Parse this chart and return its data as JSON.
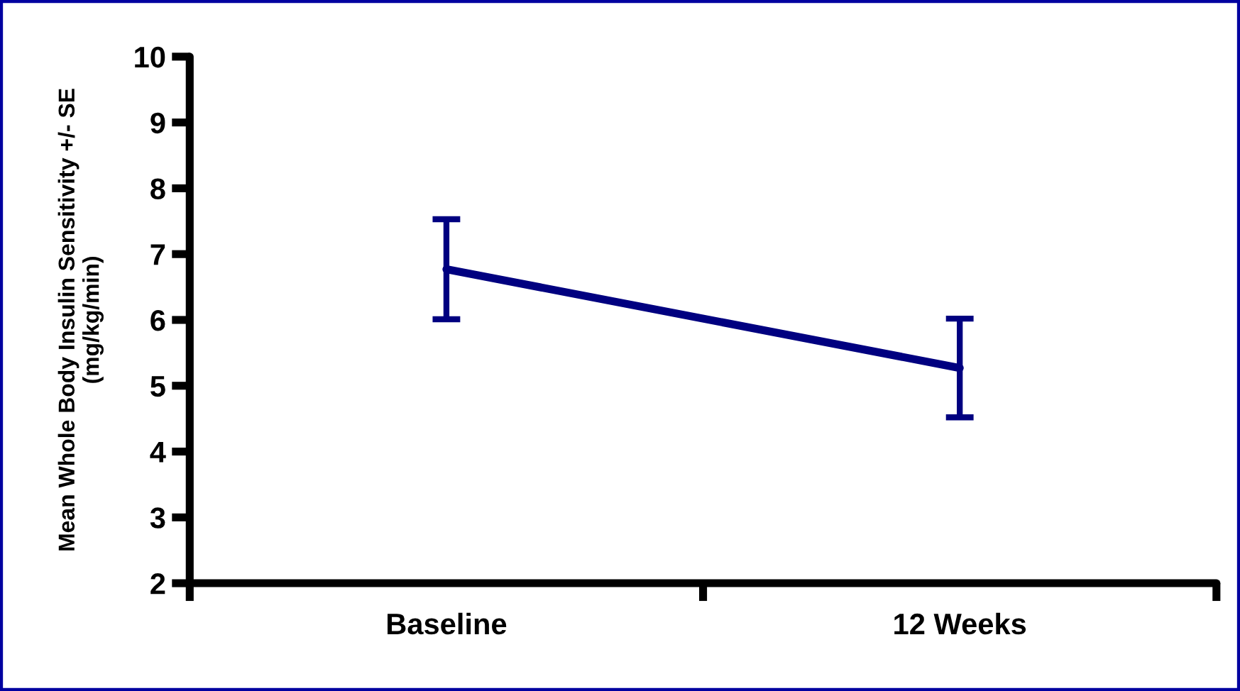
{
  "chart_data": {
    "type": "line",
    "ylabel": "Mean Whole Body Insulin Sensitivity +/- SE\n(mg/kg/min)",
    "categories": [
      "Baseline",
      "12 Weeks"
    ],
    "series": [
      {
        "color": "#000080",
        "values": [
          6.77,
          5.27
        ],
        "errors": [
          0.76,
          0.75
        ]
      }
    ],
    "ylim": [
      2,
      10
    ],
    "yticks": [
      2,
      3,
      4,
      5,
      6,
      7,
      8,
      9,
      10
    ],
    "grid": false,
    "legend": false,
    "line_style": "solid"
  }
}
